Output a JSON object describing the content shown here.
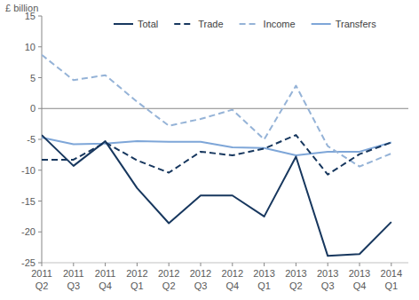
{
  "chart_data": {
    "type": "line",
    "y_label": "£ billion",
    "categories": [
      "2011 Q2",
      "2011 Q3",
      "2011 Q4",
      "2012 Q1",
      "2012 Q2",
      "2012 Q3",
      "2012 Q4",
      "2013 Q1",
      "2013 Q2",
      "2013 Q3",
      "2013 Q4",
      "2014 Q1"
    ],
    "series": [
      {
        "name": "Total",
        "color": "#17375e",
        "line_style": "solid",
        "values": [
          -4.3,
          -9.3,
          -5.3,
          -12.9,
          -18.6,
          -14.1,
          -14.1,
          -17.5,
          -7.8,
          -23.9,
          -23.6,
          -18.4
        ]
      },
      {
        "name": "Trade",
        "color": "#17375e",
        "line_style": "dashed",
        "values": [
          -8.3,
          -8.3,
          -5.5,
          -8.4,
          -10.4,
          -7.0,
          -7.6,
          -6.5,
          -4.3,
          -10.7,
          -7.4,
          -5.5
        ]
      },
      {
        "name": "Income",
        "color": "#95b3d7",
        "line_style": "dashed",
        "values": [
          8.7,
          4.6,
          5.4,
          1.1,
          -2.8,
          -1.7,
          -0.2,
          -5.0,
          3.7,
          -6.1,
          -9.4,
          -7.3
        ]
      },
      {
        "name": "Transfers",
        "color": "#7ea6d8",
        "line_style": "solid",
        "values": [
          -4.7,
          -5.8,
          -5.7,
          -5.3,
          -5.4,
          -5.4,
          -6.3,
          -6.4,
          -7.6,
          -7.0,
          -7.0,
          -5.5
        ]
      }
    ],
    "ylim": [
      -25,
      15
    ],
    "yticks": [
      -25,
      -20,
      -15,
      -10,
      -5,
      0,
      5,
      10,
      15
    ],
    "grid": false,
    "legend": "top"
  }
}
